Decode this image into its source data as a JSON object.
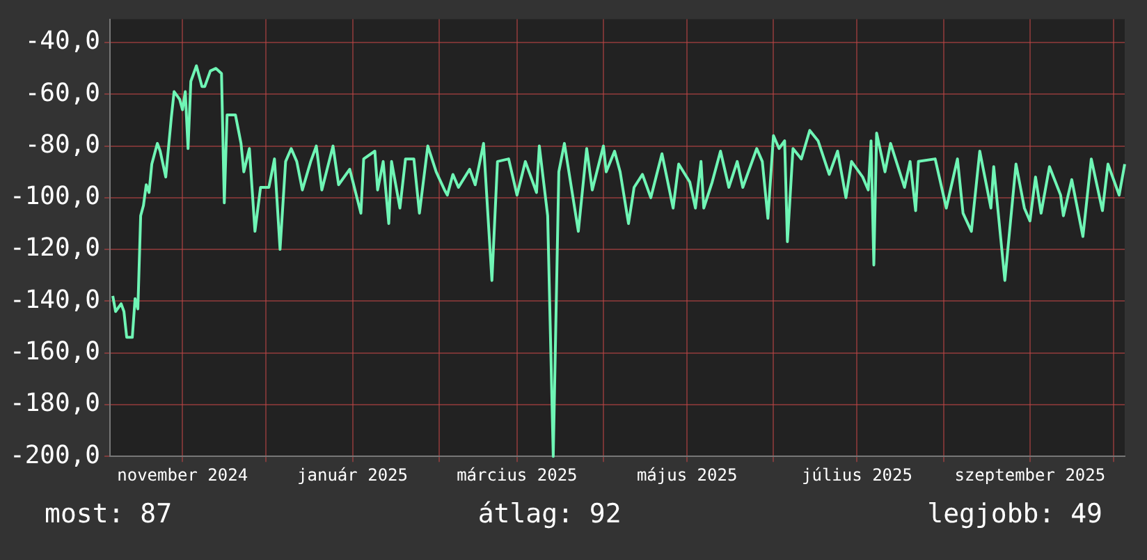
{
  "chart_data": {
    "type": "line",
    "x": [
      "2024-10-07",
      "2024-10-08",
      "2024-10-10",
      "2024-10-11",
      "2024-10-12",
      "2024-10-14",
      "2024-10-15",
      "2024-10-16",
      "2024-10-17",
      "2024-10-18",
      "2024-10-19",
      "2024-10-20",
      "2024-10-21",
      "2024-10-23",
      "2024-10-24",
      "2024-10-26",
      "2024-10-28",
      "2024-10-29",
      "2024-10-31",
      "2024-11-01",
      "2024-11-02",
      "2024-11-03",
      "2024-11-04",
      "2024-11-06",
      "2024-11-08",
      "2024-11-09",
      "2024-11-11",
      "2024-11-13",
      "2024-11-15",
      "2024-11-16",
      "2024-11-17",
      "2024-11-19",
      "2024-11-20",
      "2024-11-22",
      "2024-11-23",
      "2024-11-25",
      "2024-11-27",
      "2024-11-29",
      "2024-12-02",
      "2024-12-04",
      "2024-12-06",
      "2024-12-08",
      "2024-12-10",
      "2024-12-12",
      "2024-12-14",
      "2024-12-17",
      "2024-12-19",
      "2024-12-21",
      "2024-12-25",
      "2024-12-27",
      "2024-12-31",
      "2025-01-04",
      "2025-01-05",
      "2025-01-09",
      "2025-01-10",
      "2025-01-12",
      "2025-01-14",
      "2025-01-15",
      "2025-01-18",
      "2025-01-20",
      "2025-01-23",
      "2025-01-25",
      "2025-01-28",
      "2025-01-31",
      "2025-02-03",
      "2025-02-04",
      "2025-02-06",
      "2025-02-08",
      "2025-02-12",
      "2025-02-14",
      "2025-02-17",
      "2025-02-20",
      "2025-02-22",
      "2025-02-26",
      "2025-03-01",
      "2025-03-04",
      "2025-03-08",
      "2025-03-09",
      "2025-03-12",
      "2025-03-14",
      "2025-03-16",
      "2025-03-18",
      "2025-03-23",
      "2025-03-26",
      "2025-03-28",
      "2025-04-01",
      "2025-04-02",
      "2025-04-05",
      "2025-04-07",
      "2025-04-10",
      "2025-04-12",
      "2025-04-15",
      "2025-04-18",
      "2025-04-22",
      "2025-04-26",
      "2025-04-28",
      "2025-05-02",
      "2025-05-04",
      "2025-05-06",
      "2025-05-07",
      "2025-05-10",
      "2025-05-13",
      "2025-05-16",
      "2025-05-19",
      "2025-05-21",
      "2025-05-26",
      "2025-05-28",
      "2025-05-30",
      "2025-06-01",
      "2025-06-03",
      "2025-06-05",
      "2025-06-06",
      "2025-06-08",
      "2025-06-11",
      "2025-06-14",
      "2025-06-17",
      "2025-06-21",
      "2025-06-24",
      "2025-06-27",
      "2025-06-29",
      "2025-07-03",
      "2025-07-05",
      "2025-07-06",
      "2025-07-07",
      "2025-07-08",
      "2025-07-11",
      "2025-07-13",
      "2025-07-18",
      "2025-07-20",
      "2025-07-22",
      "2025-07-23",
      "2025-07-29",
      "2025-08-02",
      "2025-08-06",
      "2025-08-08",
      "2025-08-11",
      "2025-08-14",
      "2025-08-18",
      "2025-08-19",
      "2025-08-23",
      "2025-08-27",
      "2025-08-30",
      "2025-09-01",
      "2025-09-03",
      "2025-09-05",
      "2025-09-08",
      "2025-09-12",
      "2025-09-13",
      "2025-09-16",
      "2025-09-20",
      "2025-09-23",
      "2025-09-27",
      "2025-09-29",
      "2025-10-03",
      "2025-10-05"
    ],
    "series": [
      {
        "color": "#6ff5b5",
        "values": [
          -138,
          -144,
          -141,
          -144,
          -154,
          -154,
          -139,
          -143,
          -107,
          -103,
          -95,
          -98,
          -87,
          -79,
          -82,
          -92,
          -69,
          -59,
          -62,
          -66,
          -59,
          -81,
          -55,
          -49,
          -57,
          -57,
          -51,
          -50,
          -52,
          -102,
          -68,
          -68,
          -68,
          -79,
          -90,
          -81,
          -113,
          -96,
          -96,
          -85,
          -120,
          -86,
          -81,
          -86,
          -97,
          -86,
          -80,
          -97,
          -80,
          -95,
          -89,
          -106,
          -85,
          -82,
          -97,
          -86,
          -110,
          -86,
          -104,
          -85,
          -85,
          -106,
          -80,
          -90,
          -97,
          -99,
          -91,
          -96,
          -89,
          -95,
          -79,
          -132,
          -86,
          -85,
          -99,
          -86,
          -98,
          -80,
          -107,
          -200,
          -90,
          -79,
          -113,
          -81,
          -97,
          -80,
          -90,
          -82,
          -90,
          -110,
          -96,
          -91,
          -100,
          -83,
          -104,
          -87,
          -94,
          -104,
          -86,
          -104,
          -94,
          -82,
          -96,
          -86,
          -96,
          -81,
          -86,
          -108,
          -76,
          -81,
          -78,
          -117,
          -81,
          -85,
          -74,
          -78,
          -91,
          -82,
          -100,
          -86,
          -92,
          -97,
          -78,
          -126,
          -75,
          -90,
          -79,
          -96,
          -86,
          -105,
          -86,
          -85,
          -104,
          -85,
          -106,
          -113,
          -82,
          -104,
          -88,
          -132,
          -87,
          -104,
          -109,
          -92,
          -106,
          -88,
          -99,
          -107,
          -93,
          -115,
          -85,
          -105,
          -87,
          -99,
          -87
        ]
      }
    ],
    "xlim": [
      "2024-10-06",
      "2025-10-05"
    ],
    "xticks": [
      {
        "value": "2024-11-01",
        "label": "november 2024"
      },
      {
        "value": "2024-12-01",
        "label": null
      },
      {
        "value": "2025-01-01",
        "label": "január 2025"
      },
      {
        "value": "2025-02-01",
        "label": null
      },
      {
        "value": "2025-03-01",
        "label": "március 2025"
      },
      {
        "value": "2025-04-01",
        "label": null
      },
      {
        "value": "2025-05-01",
        "label": "május 2025"
      },
      {
        "value": "2025-06-01",
        "label": null
      },
      {
        "value": "2025-07-01",
        "label": "július 2025"
      },
      {
        "value": "2025-08-01",
        "label": null
      },
      {
        "value": "2025-09-01",
        "label": "szeptember 2025"
      },
      {
        "value": "2025-10-01",
        "label": null
      }
    ],
    "ylim": [
      -200,
      -31
    ],
    "yticks": [
      {
        "value": -200,
        "label": "-200,0"
      },
      {
        "value": -180,
        "label": "-180,0"
      },
      {
        "value": -160,
        "label": "-160,0"
      },
      {
        "value": -140,
        "label": "-140,0"
      },
      {
        "value": -120,
        "label": "-120,0"
      },
      {
        "value": -100,
        "label": "-100,0"
      },
      {
        "value": -80,
        "label": "-80,0"
      },
      {
        "value": -60,
        "label": "-60,0"
      },
      {
        "value": -40,
        "label": "-40,0"
      }
    ],
    "grid": true,
    "legend": false,
    "marker": "none",
    "line_style": "solid",
    "annotations": [
      "most: 87",
      "átlag: 92",
      "legjobb: 49"
    ]
  }
}
